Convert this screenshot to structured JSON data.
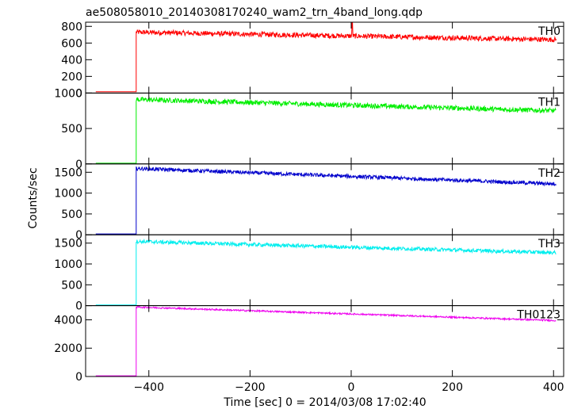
{
  "chart_data": {
    "type": "line",
    "title": "ae508058010_20140308170240_wam2_trn_4band_long.qdp",
    "xlabel": "Time [sec] 0 = 2014/03/08 17:02:40",
    "ylabel": "Counts/sec",
    "xlim": [
      -525,
      420
    ],
    "x_ticks": [
      -400,
      -200,
      0,
      200,
      400
    ],
    "x_tick_labels": [
      "−400",
      "−200",
      "0",
      "200",
      "400"
    ],
    "grid": false,
    "series": [
      {
        "name": "TH0",
        "color": "#ff0000",
        "ylim": [
          0,
          850
        ],
        "y_ticks": [
          0,
          200,
          400,
          600,
          800
        ],
        "pre_level": 15,
        "onset_x": -425,
        "start_level": 730,
        "end_level": 640,
        "noise": 30,
        "pre_x_start": -505,
        "end_x": 405,
        "spike": {
          "x": 2,
          "y": 850
        }
      },
      {
        "name": "TH1",
        "color": "#00ee00",
        "ylim": [
          0,
          1000
        ],
        "y_ticks": [
          0,
          500,
          1000
        ],
        "pre_level": 10,
        "onset_x": -425,
        "start_level": 910,
        "end_level": 750,
        "noise": 35,
        "pre_x_start": -505,
        "end_x": 405
      },
      {
        "name": "TH2",
        "color": "#0000cc",
        "ylim": [
          0,
          1700
        ],
        "y_ticks": [
          0,
          500,
          1000,
          1500
        ],
        "pre_level": 20,
        "onset_x": -425,
        "start_level": 1590,
        "end_level": 1220,
        "noise": 45,
        "pre_x_start": -505,
        "end_x": 405
      },
      {
        "name": "TH3",
        "color": "#00eeee",
        "ylim": [
          0,
          1700
        ],
        "y_ticks": [
          0,
          500,
          1000,
          1500
        ],
        "pre_level": 15,
        "onset_x": -425,
        "start_level": 1540,
        "end_level": 1270,
        "noise": 45,
        "pre_x_start": -505,
        "end_x": 405
      },
      {
        "name": "TH0123",
        "color": "#ee00ee",
        "ylim": [
          0,
          5000
        ],
        "y_ticks": [
          0,
          2000,
          4000
        ],
        "pre_level": 50,
        "onset_x": -425,
        "start_level": 4900,
        "end_level": 3950,
        "noise": 55,
        "pre_x_start": -505,
        "end_x": 405
      }
    ]
  }
}
